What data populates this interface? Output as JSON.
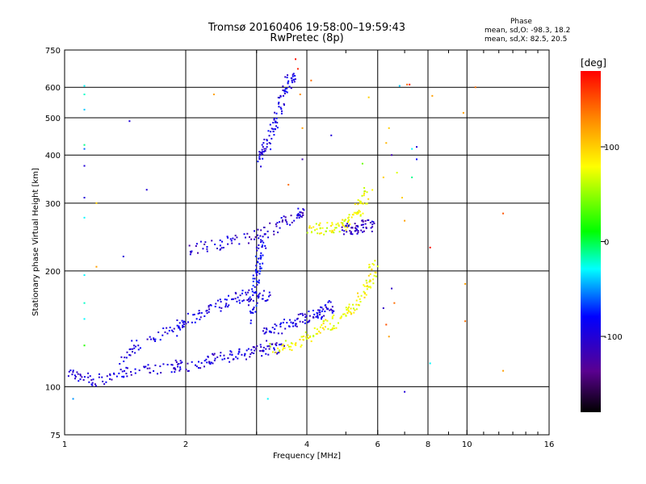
{
  "header": {
    "title_line1": "Tromsø 20160406 19:58:00–19:59:43",
    "title_line2": "RwPretec (8p)",
    "corner_title": "Phase",
    "corner_line1": "mean, sd,O:  -98.3, 18.2",
    "corner_line2": "mean, sd,X:  82.5, 20.5"
  },
  "chart_data": {
    "type": "scatter",
    "xlabel": "Frequency [MHz]",
    "ylabel": "Stationary phase Virtual Height [km]",
    "xscale": "log",
    "yscale": "log",
    "xlim": [
      1,
      16
    ],
    "ylim": [
      75,
      750
    ],
    "x_ticks": [
      1,
      2,
      4,
      6,
      8,
      10,
      16
    ],
    "x_minor_ticks": [
      3,
      5,
      7,
      9,
      11,
      12,
      13,
      14,
      15
    ],
    "x_gridlines": [
      2,
      3,
      4,
      6,
      8,
      10
    ],
    "y_ticks": [
      75,
      100,
      200,
      300,
      400,
      500,
      600,
      750
    ],
    "colorbar": {
      "label": "[deg]",
      "ticks": [
        100,
        0,
        -100
      ],
      "range": [
        -180,
        180
      ]
    },
    "traces": [
      {
        "description": "O-mode lower E/F1 trace",
        "phase": -100,
        "points": [
          [
            1.02,
            108
          ],
          [
            1.1,
            105
          ],
          [
            1.2,
            104
          ],
          [
            1.35,
            107
          ],
          [
            1.5,
            110
          ],
          [
            1.7,
            112
          ],
          [
            1.9,
            113
          ],
          [
            2.1,
            114
          ],
          [
            2.3,
            117
          ],
          [
            2.5,
            119
          ],
          [
            2.7,
            121
          ],
          [
            2.9,
            123
          ],
          [
            3.1,
            124
          ],
          [
            3.3,
            126
          ],
          [
            3.5,
            128
          ]
        ]
      },
      {
        "description": "O-mode F1 cloud",
        "phase": -95,
        "points": [
          [
            1.4,
            118
          ],
          [
            1.5,
            128
          ],
          [
            1.7,
            135
          ],
          [
            1.9,
            140
          ],
          [
            2.0,
            150
          ],
          [
            2.2,
            155
          ],
          [
            2.4,
            162
          ],
          [
            2.6,
            168
          ],
          [
            2.8,
            172
          ],
          [
            3.0,
            175
          ],
          [
            3.2,
            170
          ]
        ]
      },
      {
        "description": "O-mode F2 trace",
        "phase": -95,
        "points": [
          [
            3.1,
            135
          ],
          [
            3.3,
            140
          ],
          [
            3.6,
            145
          ],
          [
            3.9,
            150
          ],
          [
            4.1,
            152
          ],
          [
            4.3,
            155
          ],
          [
            4.5,
            158
          ],
          [
            4.6,
            162
          ]
        ]
      },
      {
        "description": "O-mode F1 cusp",
        "phase": -85,
        "points": [
          [
            2.9,
            150
          ],
          [
            2.95,
            170
          ],
          [
            3.0,
            190
          ],
          [
            3.02,
            205
          ],
          [
            3.05,
            225
          ],
          [
            3.1,
            240
          ]
        ]
      },
      {
        "description": "O-mode slanted trace",
        "phase": -105,
        "points": [
          [
            2.0,
            225
          ],
          [
            2.3,
            232
          ],
          [
            2.6,
            240
          ],
          [
            2.9,
            245
          ],
          [
            3.2,
            255
          ],
          [
            3.5,
            265
          ],
          [
            3.8,
            278
          ],
          [
            3.9,
            285
          ]
        ]
      },
      {
        "description": "O-mode high trace",
        "phase": -95,
        "points": [
          [
            3.0,
            380
          ],
          [
            3.1,
            400
          ],
          [
            3.2,
            430
          ],
          [
            3.3,
            470
          ],
          [
            3.4,
            520
          ],
          [
            3.5,
            570
          ],
          [
            3.6,
            620
          ],
          [
            3.7,
            640
          ]
        ]
      },
      {
        "description": "X-mode F trace",
        "phase": 80,
        "points": [
          [
            3.3,
            125
          ],
          [
            3.6,
            128
          ],
          [
            3.9,
            132
          ],
          [
            4.2,
            138
          ],
          [
            4.5,
            145
          ],
          [
            4.8,
            150
          ],
          [
            5.1,
            158
          ],
          [
            5.4,
            168
          ],
          [
            5.6,
            180
          ],
          [
            5.8,
            195
          ],
          [
            5.9,
            210
          ]
        ]
      },
      {
        "description": "X-mode upper trace",
        "phase": 75,
        "points": [
          [
            4.0,
            258
          ],
          [
            4.3,
            257
          ],
          [
            4.6,
            258
          ],
          [
            4.9,
            262
          ],
          [
            5.1,
            265
          ],
          [
            5.3,
            285
          ],
          [
            5.5,
            300
          ],
          [
            5.7,
            330
          ]
        ]
      },
      {
        "description": "Mixed upper trace",
        "phase": -110,
        "points": [
          [
            4.9,
            258
          ],
          [
            5.2,
            257
          ],
          [
            5.4,
            260
          ],
          [
            5.6,
            262
          ],
          [
            5.8,
            262
          ]
        ]
      }
    ],
    "scattered_points": [
      {
        "x": 1.12,
        "y": 605,
        "phase": -30
      },
      {
        "x": 1.12,
        "y": 575,
        "phase": -20
      },
      {
        "x": 1.12,
        "y": 525,
        "phase": -40
      },
      {
        "x": 1.12,
        "y": 425,
        "phase": -10
      },
      {
        "x": 1.12,
        "y": 415,
        "phase": -60
      },
      {
        "x": 1.12,
        "y": 375,
        "phase": -100
      },
      {
        "x": 1.12,
        "y": 310,
        "phase": -100
      },
      {
        "x": 1.12,
        "y": 275,
        "phase": -30
      },
      {
        "x": 1.12,
        "y": 195,
        "phase": -30
      },
      {
        "x": 1.12,
        "y": 165,
        "phase": -20
      },
      {
        "x": 1.12,
        "y": 150,
        "phase": -30
      },
      {
        "x": 1.12,
        "y": 128,
        "phase": 20
      },
      {
        "x": 1.2,
        "y": 300,
        "phase": 100
      },
      {
        "x": 1.2,
        "y": 205,
        "phase": 120
      },
      {
        "x": 1.45,
        "y": 490,
        "phase": -100
      },
      {
        "x": 1.6,
        "y": 325,
        "phase": -100
      },
      {
        "x": 1.4,
        "y": 218,
        "phase": -100
      },
      {
        "x": 1.05,
        "y": 93,
        "phase": -50
      },
      {
        "x": 2.35,
        "y": 575,
        "phase": 120
      },
      {
        "x": 3.2,
        "y": 93,
        "phase": -30
      },
      {
        "x": 3.9,
        "y": 470,
        "phase": 120
      },
      {
        "x": 3.85,
        "y": 575,
        "phase": 130
      },
      {
        "x": 4.1,
        "y": 625,
        "phase": 140
      },
      {
        "x": 3.8,
        "y": 670,
        "phase": 170
      },
      {
        "x": 3.75,
        "y": 710,
        "phase": 175
      },
      {
        "x": 3.6,
        "y": 335,
        "phase": 140
      },
      {
        "x": 3.9,
        "y": 390,
        "phase": -120
      },
      {
        "x": 4.6,
        "y": 450,
        "phase": -100
      },
      {
        "x": 5.5,
        "y": 380,
        "phase": 40
      },
      {
        "x": 6.4,
        "y": 470,
        "phase": 100
      },
      {
        "x": 6.3,
        "y": 430,
        "phase": 110
      },
      {
        "x": 6.2,
        "y": 350,
        "phase": 100
      },
      {
        "x": 6.5,
        "y": 400,
        "phase": -120
      },
      {
        "x": 6.7,
        "y": 360,
        "phase": 70
      },
      {
        "x": 6.9,
        "y": 310,
        "phase": 100
      },
      {
        "x": 7.0,
        "y": 270,
        "phase": 120
      },
      {
        "x": 7.3,
        "y": 415,
        "phase": -30
      },
      {
        "x": 7.3,
        "y": 350,
        "phase": -10
      },
      {
        "x": 7.5,
        "y": 390,
        "phase": -80
      },
      {
        "x": 6.8,
        "y": 605,
        "phase": -40
      },
      {
        "x": 7.1,
        "y": 610,
        "phase": 140
      },
      {
        "x": 7.2,
        "y": 610,
        "phase": 170
      },
      {
        "x": 7.5,
        "y": 420,
        "phase": -100
      },
      {
        "x": 8.2,
        "y": 570,
        "phase": 120
      },
      {
        "x": 8.1,
        "y": 230,
        "phase": 175
      },
      {
        "x": 8.1,
        "y": 115,
        "phase": -30
      },
      {
        "x": 7.0,
        "y": 97,
        "phase": -100
      },
      {
        "x": 9.8,
        "y": 515,
        "phase": 120
      },
      {
        "x": 9.9,
        "y": 185,
        "phase": 120
      },
      {
        "x": 9.9,
        "y": 148,
        "phase": 140
      },
      {
        "x": 10.5,
        "y": 600,
        "phase": 140
      },
      {
        "x": 12.3,
        "y": 282,
        "phase": 150
      },
      {
        "x": 12.3,
        "y": 110,
        "phase": 120
      },
      {
        "x": 6.5,
        "y": 180,
        "phase": -110
      },
      {
        "x": 6.6,
        "y": 165,
        "phase": 140
      },
      {
        "x": 6.2,
        "y": 160,
        "phase": -110
      },
      {
        "x": 6.3,
        "y": 145,
        "phase": 150
      },
      {
        "x": 6.4,
        "y": 135,
        "phase": 120
      },
      {
        "x": 5.7,
        "y": 565,
        "phase": 100
      }
    ]
  }
}
